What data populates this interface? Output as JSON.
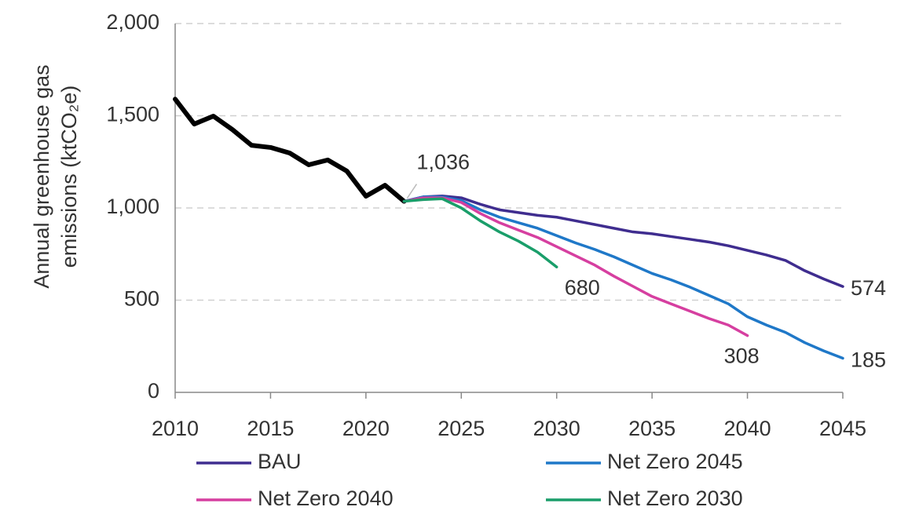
{
  "chart_data": {
    "type": "line",
    "ylabel": [
      "Annual greenhouse gas",
      "emissions (ktCO₂e)"
    ],
    "x": [
      2010,
      2011,
      2012,
      2013,
      2014,
      2015,
      2016,
      2017,
      2018,
      2019,
      2020,
      2021,
      2022,
      2023,
      2024,
      2025,
      2026,
      2027,
      2028,
      2029,
      2030,
      2031,
      2032,
      2033,
      2034,
      2035,
      2036,
      2037,
      2038,
      2039,
      2040,
      2041,
      2042,
      2043,
      2044,
      2045
    ],
    "xlim": [
      2010,
      2045
    ],
    "xticks": [
      2010,
      2015,
      2020,
      2025,
      2030,
      2035,
      2040,
      2045
    ],
    "ylim": [
      0,
      2000
    ],
    "yticks": [
      0,
      500,
      {
        "value": 1000,
        "label": "1,000"
      },
      {
        "value": 1500,
        "label": "1,500"
      },
      {
        "value": 2000,
        "label": "2,000"
      }
    ],
    "grid": true,
    "legend": "bottom",
    "series": [
      {
        "color": "#000000",
        "values": [
          1590,
          1455,
          1498,
          1425,
          1340,
          1328,
          1298,
          1234,
          1260,
          1200,
          1064,
          1123,
          1036,
          null,
          null,
          null,
          null,
          null,
          null,
          null,
          null,
          null,
          null,
          null,
          null,
          null,
          null,
          null,
          null,
          null,
          null,
          null,
          null,
          null,
          null,
          null
        ],
        "value_labels": [
          null,
          null,
          null,
          null,
          null,
          null,
          null,
          null,
          null,
          null,
          null,
          null,
          "1,036",
          null,
          null,
          null,
          null,
          null,
          null,
          null,
          null,
          null,
          null,
          null,
          null,
          null,
          null,
          null,
          null,
          null,
          null,
          null,
          null,
          null,
          null,
          null
        ]
      },
      {
        "name": "BAU",
        "color": "#3f2d8f",
        "values": [
          null,
          null,
          null,
          null,
          null,
          null,
          null,
          null,
          null,
          null,
          null,
          null,
          1036,
          1060,
          1065,
          1055,
          1020,
          990,
          975,
          960,
          950,
          930,
          910,
          890,
          870,
          860,
          845,
          830,
          815,
          795,
          770,
          745,
          715,
          660,
          615,
          574
        ],
        "value_labels": [
          null,
          null,
          null,
          null,
          null,
          null,
          null,
          null,
          null,
          null,
          null,
          null,
          null,
          null,
          null,
          null,
          null,
          null,
          null,
          null,
          null,
          null,
          null,
          null,
          null,
          null,
          null,
          null,
          null,
          null,
          null,
          null,
          null,
          null,
          null,
          "574"
        ]
      },
      {
        "name": "Net Zero 2045",
        "color": "#1f78c8",
        "values": [
          null,
          null,
          null,
          null,
          null,
          null,
          null,
          null,
          null,
          null,
          null,
          null,
          1036,
          1060,
          1060,
          1040,
          990,
          950,
          920,
          890,
          850,
          810,
          775,
          735,
          690,
          645,
          610,
          570,
          525,
          480,
          410,
          365,
          325,
          270,
          225,
          185
        ],
        "value_labels": [
          null,
          null,
          null,
          null,
          null,
          null,
          null,
          null,
          null,
          null,
          null,
          null,
          null,
          null,
          null,
          null,
          null,
          null,
          null,
          null,
          null,
          null,
          null,
          null,
          null,
          null,
          null,
          null,
          null,
          null,
          null,
          null,
          null,
          null,
          null,
          "185"
        ]
      },
      {
        "name": "Net Zero 2040",
        "color": "#d63fa0",
        "values": [
          null,
          null,
          null,
          null,
          null,
          null,
          null,
          null,
          null,
          null,
          null,
          null,
          1036,
          1055,
          1055,
          1030,
          970,
          920,
          880,
          840,
          790,
          740,
          690,
          630,
          575,
          520,
          480,
          440,
          400,
          365,
          308,
          null,
          null,
          null,
          null,
          null
        ],
        "value_labels": [
          null,
          null,
          null,
          null,
          null,
          null,
          null,
          null,
          null,
          null,
          null,
          null,
          null,
          null,
          null,
          null,
          null,
          null,
          null,
          null,
          null,
          null,
          null,
          null,
          null,
          null,
          null,
          null,
          null,
          null,
          "308",
          null,
          null,
          null,
          null,
          null
        ]
      },
      {
        "name": "Net Zero 2030",
        "color": "#1a9e6a",
        "values": [
          null,
          null,
          null,
          null,
          null,
          null,
          null,
          null,
          null,
          null,
          null,
          null,
          1036,
          1045,
          1050,
          1000,
          930,
          870,
          820,
          760,
          680,
          null,
          null,
          null,
          null,
          null,
          null,
          null,
          null,
          null,
          null,
          null,
          null,
          null,
          null,
          null
        ],
        "value_labels": [
          null,
          null,
          null,
          null,
          null,
          null,
          null,
          null,
          null,
          null,
          null,
          null,
          null,
          null,
          null,
          null,
          null,
          null,
          null,
          null,
          "680",
          null,
          null,
          null,
          null,
          null,
          null,
          null,
          null,
          null,
          null,
          null,
          null,
          null,
          null,
          null
        ]
      }
    ]
  }
}
